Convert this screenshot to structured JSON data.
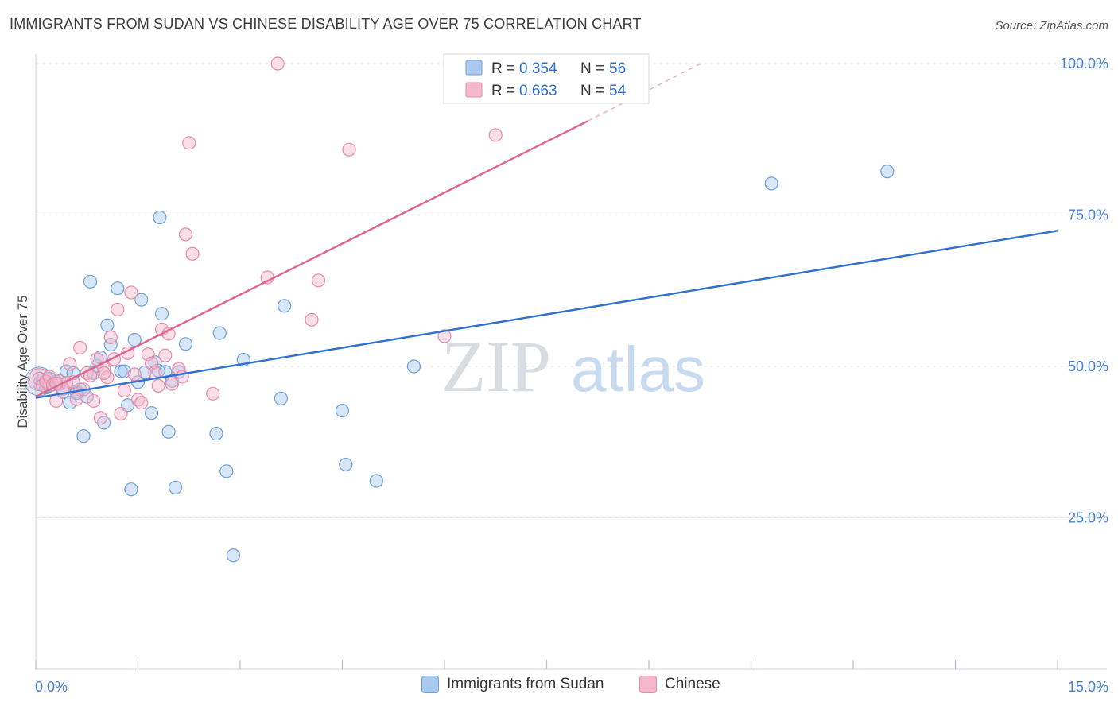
{
  "title": "IMMIGRANTS FROM SUDAN VS CHINESE DISABILITY AGE OVER 75 CORRELATION CHART",
  "source": "Source: ZipAtlas.com",
  "watermark": {
    "zip": "ZIP",
    "atlas": "atlas"
  },
  "colors": {
    "sudan_fill": "#a9c9ef",
    "sudan_stroke": "#6f9fd8",
    "sudan_line": "#2f6fce",
    "chinese_fill": "#f5b7cb",
    "chinese_stroke": "#e98aa8",
    "chinese_line": "#e0648f",
    "grid": "#dfe3e8",
    "tick_text": "#4a7fd0"
  },
  "legend": {
    "rows": [
      {
        "r_label": "R = ",
        "r_value": "0.354",
        "n_label": "N = ",
        "n_value": "56"
      },
      {
        "r_label": "R = ",
        "r_value": "0.663",
        "n_label": "N = ",
        "n_value": "54"
      }
    ]
  },
  "chart_data": {
    "type": "scatter",
    "title": "IMMIGRANTS FROM SUDAN VS CHINESE DISABILITY AGE OVER 75 CORRELATION CHART",
    "xlabel": "",
    "ylabel": "Disability Age Over 75",
    "xlim": [
      0,
      15
    ],
    "ylim": [
      0,
      100
    ],
    "x_tick_labels": [
      "0.0%",
      "15.0%"
    ],
    "y_ticks": [
      25,
      50,
      75,
      100
    ],
    "y_tick_labels": [
      "25.0%",
      "50.0%",
      "75.0%",
      "100.0%"
    ],
    "grid": true,
    "legend_position": "bottom",
    "series": [
      {
        "name": "Immigrants from Sudan",
        "R": 0.354,
        "N": 56,
        "trend": {
          "x": [
            0,
            15
          ],
          "y": [
            44.8,
            72.4
          ]
        },
        "points": [
          [
            0.05,
            47.2
          ],
          [
            0.1,
            47.8
          ],
          [
            0.15,
            46.5
          ],
          [
            0.2,
            48.0
          ],
          [
            0.3,
            47.5
          ],
          [
            0.35,
            47.1
          ],
          [
            0.4,
            45.8
          ],
          [
            0.45,
            49.2
          ],
          [
            0.5,
            44.0
          ],
          [
            0.55,
            48.9
          ],
          [
            0.6,
            45.9
          ],
          [
            0.65,
            46.2
          ],
          [
            0.7,
            38.5
          ],
          [
            0.75,
            45.0
          ],
          [
            0.8,
            64.0
          ],
          [
            0.85,
            48.9
          ],
          [
            0.9,
            50.1
          ],
          [
            0.95,
            51.5
          ],
          [
            1.0,
            40.7
          ],
          [
            1.05,
            56.8
          ],
          [
            1.1,
            53.6
          ],
          [
            1.2,
            62.9
          ],
          [
            1.25,
            49.2
          ],
          [
            1.3,
            49.2
          ],
          [
            1.35,
            43.6
          ],
          [
            1.4,
            29.7
          ],
          [
            1.45,
            54.4
          ],
          [
            1.5,
            47.4
          ],
          [
            1.55,
            61.0
          ],
          [
            1.6,
            49.0
          ],
          [
            1.7,
            42.3
          ],
          [
            1.75,
            50.7
          ],
          [
            1.8,
            49.3
          ],
          [
            1.82,
            74.6
          ],
          [
            1.85,
            58.7
          ],
          [
            1.9,
            49.1
          ],
          [
            1.95,
            39.2
          ],
          [
            2.0,
            47.6
          ],
          [
            2.05,
            30.0
          ],
          [
            2.1,
            49.1
          ],
          [
            2.2,
            53.7
          ],
          [
            2.65,
            38.9
          ],
          [
            2.7,
            55.5
          ],
          [
            2.8,
            32.7
          ],
          [
            2.9,
            18.8
          ],
          [
            3.05,
            51.1
          ],
          [
            3.6,
            44.7
          ],
          [
            3.65,
            60.0
          ],
          [
            4.5,
            42.7
          ],
          [
            4.55,
            33.8
          ],
          [
            5.0,
            31.1
          ],
          [
            5.55,
            50.0
          ],
          [
            10.8,
            80.2
          ],
          [
            12.5,
            82.2
          ],
          [
            0.6,
            45.6
          ],
          [
            0.2,
            46.8
          ]
        ]
      },
      {
        "name": "Chinese",
        "R": 0.663,
        "N": 54,
        "trend": {
          "x": [
            0,
            8.1
          ],
          "y": [
            45.0,
            90.5
          ]
        },
        "trend_dashed": {
          "x": [
            8.1,
            9.8
          ],
          "y": [
            90.5,
            100.2
          ]
        },
        "points": [
          [
            0.05,
            48.0
          ],
          [
            0.1,
            46.9
          ],
          [
            0.15,
            47.5
          ],
          [
            0.2,
            48.3
          ],
          [
            0.25,
            47.0
          ],
          [
            0.3,
            44.3
          ],
          [
            0.35,
            47.6
          ],
          [
            0.4,
            46.3
          ],
          [
            0.45,
            47.3
          ],
          [
            0.5,
            50.4
          ],
          [
            0.55,
            47.4
          ],
          [
            0.6,
            44.6
          ],
          [
            0.65,
            53.1
          ],
          [
            0.7,
            46.2
          ],
          [
            0.75,
            48.9
          ],
          [
            0.8,
            48.5
          ],
          [
            0.85,
            44.3
          ],
          [
            0.9,
            51.2
          ],
          [
            0.95,
            41.5
          ],
          [
            1.0,
            49.7
          ],
          [
            1.05,
            48.2
          ],
          [
            1.1,
            54.8
          ],
          [
            1.15,
            51.2
          ],
          [
            1.2,
            59.4
          ],
          [
            1.25,
            42.2
          ],
          [
            1.3,
            46.0
          ],
          [
            1.35,
            52.2
          ],
          [
            1.4,
            62.2
          ],
          [
            1.45,
            48.7
          ],
          [
            1.5,
            44.5
          ],
          [
            1.55,
            44.0
          ],
          [
            1.65,
            52.0
          ],
          [
            1.7,
            50.5
          ],
          [
            1.75,
            49.0
          ],
          [
            1.8,
            46.8
          ],
          [
            1.85,
            56.1
          ],
          [
            1.9,
            51.8
          ],
          [
            1.95,
            55.4
          ],
          [
            2.0,
            47.1
          ],
          [
            2.1,
            49.6
          ],
          [
            2.15,
            48.3
          ],
          [
            2.2,
            71.8
          ],
          [
            2.25,
            86.9
          ],
          [
            2.3,
            68.6
          ],
          [
            2.6,
            45.5
          ],
          [
            3.4,
            64.7
          ],
          [
            3.55,
            100.0
          ],
          [
            4.05,
            57.7
          ],
          [
            4.15,
            64.2
          ],
          [
            4.6,
            85.8
          ],
          [
            6.0,
            55.0
          ],
          [
            6.75,
            88.2
          ],
          [
            0.3,
            47.2
          ],
          [
            1.0,
            48.9
          ]
        ]
      }
    ]
  },
  "bottom_legend": {
    "sudan": "Immigrants from Sudan",
    "chinese": "Chinese"
  }
}
